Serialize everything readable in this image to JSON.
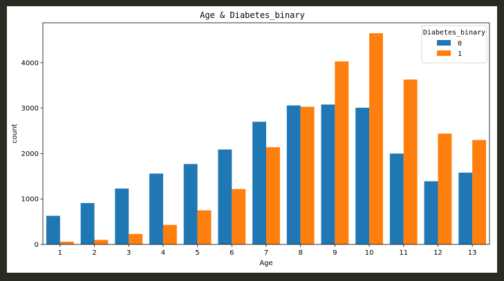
{
  "chart_data": {
    "type": "bar",
    "title": "Age & Diabetes_binary",
    "xlabel": "Age",
    "ylabel": "count",
    "categories": [
      "1",
      "2",
      "3",
      "4",
      "5",
      "6",
      "7",
      "8",
      "9",
      "10",
      "11",
      "12",
      "13"
    ],
    "series": [
      {
        "name": "0",
        "color": "#1f77b4",
        "values": [
          630,
          910,
          1230,
          1560,
          1770,
          2090,
          2700,
          3060,
          3080,
          3010,
          2000,
          1390,
          1580
        ]
      },
      {
        "name": "1",
        "color": "#ff7f0e",
        "values": [
          60,
          100,
          230,
          430,
          750,
          1220,
          2140,
          3030,
          4030,
          4650,
          3630,
          2440,
          2300
        ]
      }
    ],
    "ylim": [
      0,
      4880
    ],
    "yticks": [
      0,
      1000,
      2000,
      3000,
      4000
    ],
    "legend": {
      "title": "Diabetes_binary",
      "position": "top-right"
    },
    "grid": false
  }
}
